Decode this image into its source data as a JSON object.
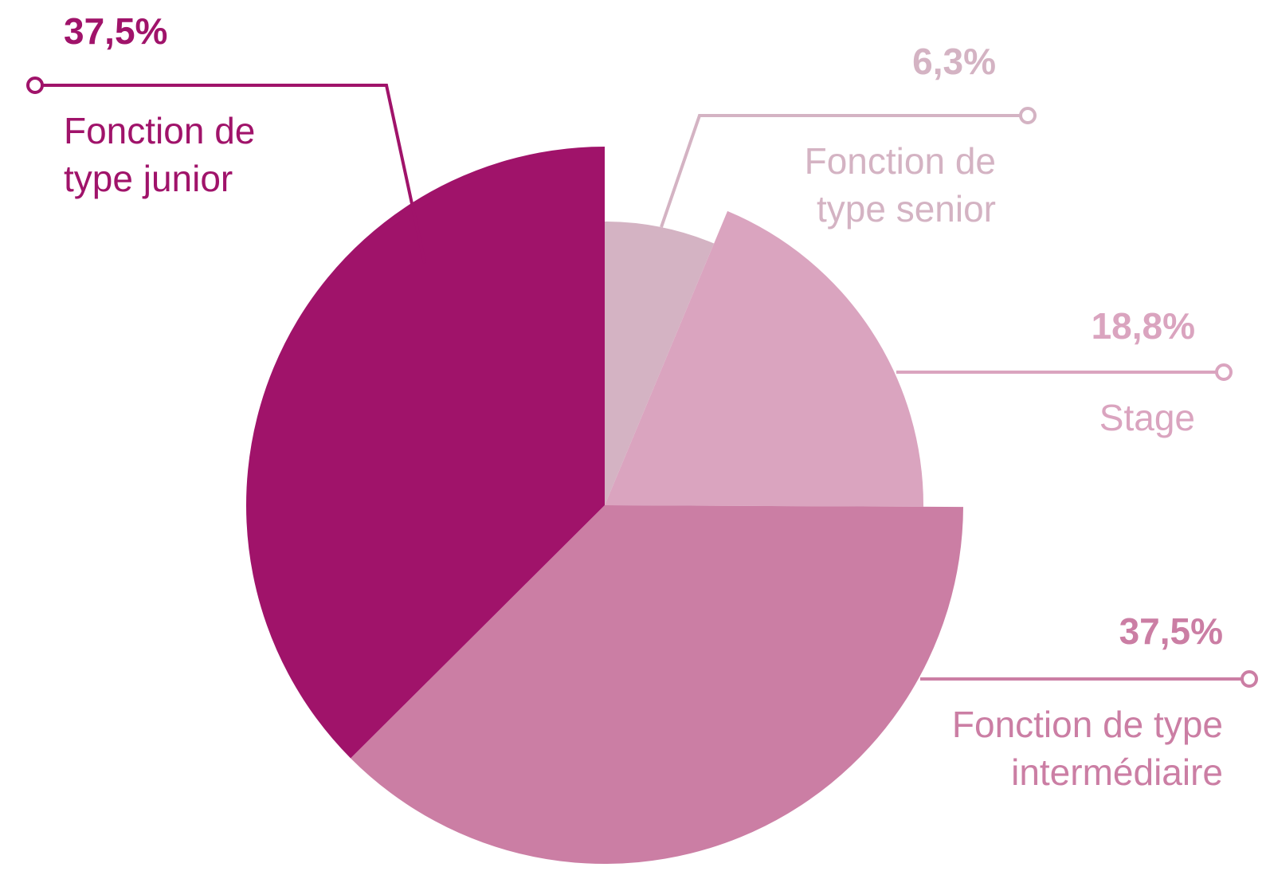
{
  "chart_data": {
    "type": "pie",
    "categories": [
      "Fonction de type senior",
      "Stage",
      "Fonction de type intermédiaire",
      "Fonction de type junior"
    ],
    "values": [
      6.3,
      18.8,
      37.5,
      37.5
    ],
    "value_labels": [
      "6,3%",
      "18,8%",
      "37,5%",
      "37,5%"
    ],
    "colors": [
      "#d4b3c3",
      "#daa4bf",
      "#cb7ea4",
      "#a0136a"
    ]
  }
}
